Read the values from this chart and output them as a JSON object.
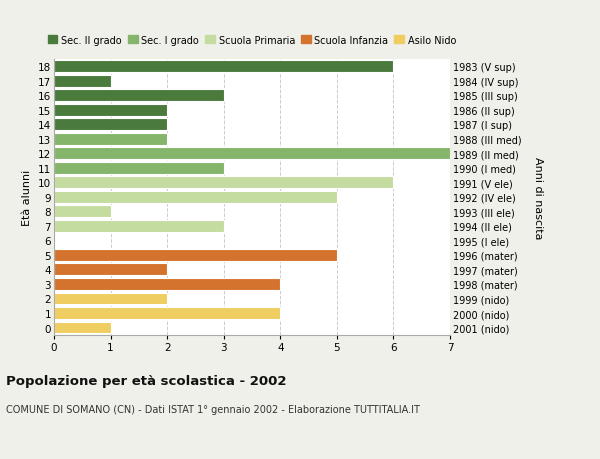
{
  "ages": [
    18,
    17,
    16,
    15,
    14,
    13,
    12,
    11,
    10,
    9,
    8,
    7,
    6,
    5,
    4,
    3,
    2,
    1,
    0
  ],
  "years": [
    "1983 (V sup)",
    "1984 (IV sup)",
    "1985 (III sup)",
    "1986 (II sup)",
    "1987 (I sup)",
    "1988 (III med)",
    "1989 (II med)",
    "1990 (I med)",
    "1991 (V ele)",
    "1992 (IV ele)",
    "1993 (III ele)",
    "1994 (II ele)",
    "1995 (I ele)",
    "1996 (mater)",
    "1997 (mater)",
    "1998 (mater)",
    "1999 (nido)",
    "2000 (nido)",
    "2001 (nido)"
  ],
  "values": [
    6,
    1,
    3,
    2,
    2,
    2,
    7,
    3,
    6,
    5,
    1,
    3,
    0,
    5,
    2,
    4,
    2,
    4,
    1
  ],
  "categories": [
    "Sec. II grado",
    "Sec. II grado",
    "Sec. II grado",
    "Sec. II grado",
    "Sec. II grado",
    "Sec. I grado",
    "Sec. I grado",
    "Sec. I grado",
    "Scuola Primaria",
    "Scuola Primaria",
    "Scuola Primaria",
    "Scuola Primaria",
    "Scuola Primaria",
    "Scuola Infanzia",
    "Scuola Infanzia",
    "Scuola Infanzia",
    "Asilo Nido",
    "Asilo Nido",
    "Asilo Nido"
  ],
  "colors": {
    "Sec. II grado": "#4a7a3c",
    "Sec. I grado": "#85b56a",
    "Scuola Primaria": "#c5dca0",
    "Scuola Infanzia": "#d4732e",
    "Asilo Nido": "#f0cd60"
  },
  "legend_order": [
    "Sec. II grado",
    "Sec. I grado",
    "Scuola Primaria",
    "Scuola Infanzia",
    "Asilo Nido"
  ],
  "ylabel_left": "Età alunni",
  "ylabel_right": "Anni di nascita",
  "title_main": "Popolazione per età scolastica - 2002",
  "title_sub": "COMUNE DI SOMANO (CN) - Dati ISTAT 1° gennaio 2002 - Elaborazione TUTTITALIA.IT",
  "xlim": [
    0,
    7
  ],
  "xticks": [
    0,
    1,
    2,
    3,
    4,
    5,
    6,
    7
  ],
  "background_color": "#f0f0ea",
  "bar_background": "#ffffff",
  "grid_color": "#cccccc",
  "dot_color": "#cc0000"
}
